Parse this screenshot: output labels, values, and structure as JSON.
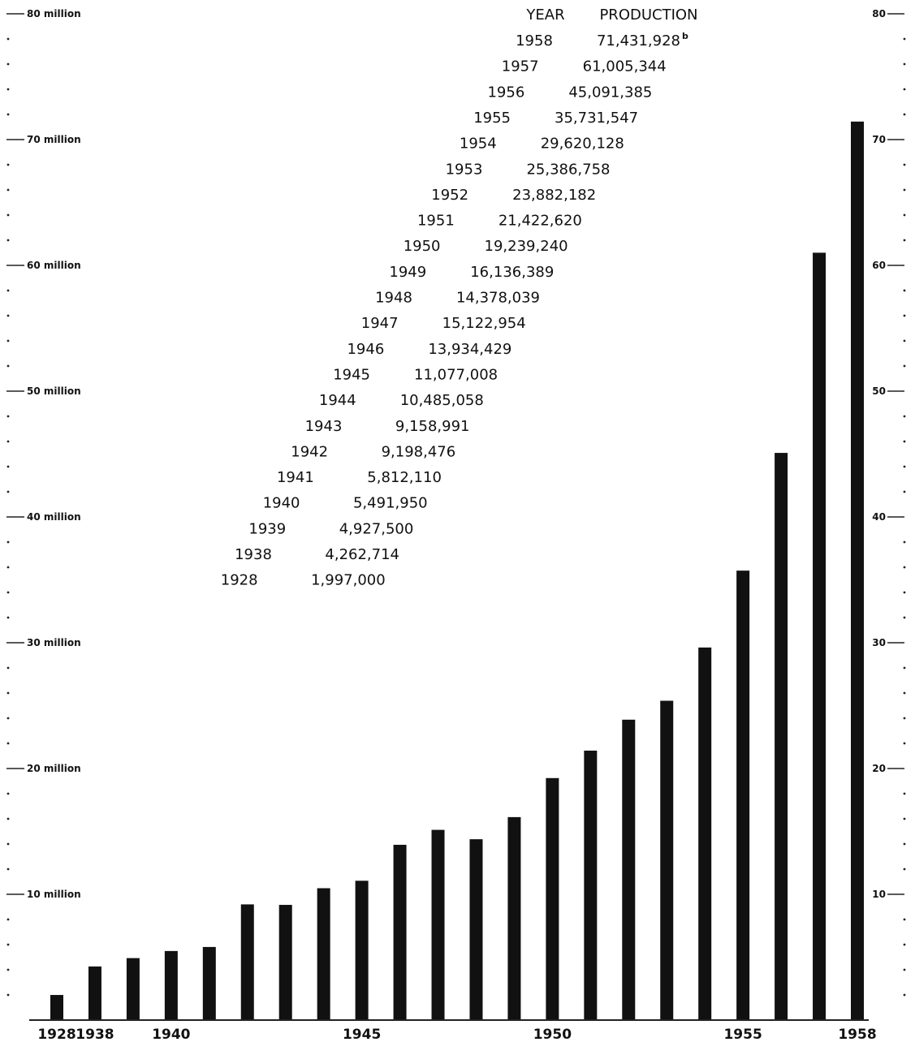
{
  "chart_data": {
    "type": "bar",
    "title": "",
    "xlabel": "",
    "ylabel": "",
    "ylim": [
      0,
      80
    ],
    "categories": [
      "1928",
      "1938",
      "1939",
      "1940",
      "1941",
      "1942",
      "1943",
      "1944",
      "1945",
      "1946",
      "1947",
      "1948",
      "1949",
      "1950",
      "1951",
      "1952",
      "1953",
      "1954",
      "1955",
      "1956",
      "1957",
      "1958"
    ],
    "values": [
      1.997,
      4.262714,
      4.9275,
      5.49195,
      5.81211,
      9.198476,
      9.158991,
      10.485058,
      11.077008,
      13.934429,
      15.122954,
      14.378039,
      16.136389,
      19.23924,
      21.42262,
      23.882182,
      25.386758,
      29.620128,
      35.731547,
      45.091385,
      61.005344,
      71.431928
    ],
    "x_tick_labels": [
      {
        "index": 0,
        "label": "1928"
      },
      {
        "index": 1,
        "label": "1938"
      },
      {
        "index": 3,
        "label": "1940"
      },
      {
        "index": 8,
        "label": "1945"
      },
      {
        "index": 13,
        "label": "1950"
      },
      {
        "index": 18,
        "label": "1955"
      },
      {
        "index": 21,
        "label": "1958"
      }
    ],
    "left_axis_labels": [
      {
        "value": 10,
        "label": "10 million"
      },
      {
        "value": 20,
        "label": "20 million"
      },
      {
        "value": 30,
        "label": "30 million"
      },
      {
        "value": 40,
        "label": "40 million"
      },
      {
        "value": 50,
        "label": "50 million"
      },
      {
        "value": 60,
        "label": "60 million"
      },
      {
        "value": 70,
        "label": "70 million"
      },
      {
        "value": 80,
        "label": "80 million"
      }
    ],
    "right_axis_labels": [
      {
        "value": 10,
        "label": "10"
      },
      {
        "value": 20,
        "label": "20"
      },
      {
        "value": 30,
        "label": "30"
      },
      {
        "value": 40,
        "label": "40"
      },
      {
        "value": 50,
        "label": "50"
      },
      {
        "value": 60,
        "label": "60"
      },
      {
        "value": 70,
        "label": "70"
      },
      {
        "value": 80,
        "label": "80"
      }
    ],
    "table": {
      "headers": [
        "YEAR",
        "PRODUCTION"
      ],
      "rows": [
        {
          "year": "1958",
          "production": "71,431,928",
          "note": "b"
        },
        {
          "year": "1957",
          "production": "61,005,344"
        },
        {
          "year": "1956",
          "production": "45,091,385"
        },
        {
          "year": "1955",
          "production": "35,731,547"
        },
        {
          "year": "1954",
          "production": "29,620,128"
        },
        {
          "year": "1953",
          "production": "25,386,758"
        },
        {
          "year": "1952",
          "production": "23,882,182"
        },
        {
          "year": "1951",
          "production": "21,422,620"
        },
        {
          "year": "1950",
          "production": "19,239,240"
        },
        {
          "year": "1949",
          "production": "16,136,389"
        },
        {
          "year": "1948",
          "production": "14,378,039"
        },
        {
          "year": "1947",
          "production": "15,122,954"
        },
        {
          "year": "1946",
          "production": "13,934,429"
        },
        {
          "year": "1945",
          "production": "11,077,008"
        },
        {
          "year": "1944",
          "production": "10,485,058"
        },
        {
          "year": "1943",
          "production": "9,158,991"
        },
        {
          "year": "1942",
          "production": "9,198,476"
        },
        {
          "year": "1941",
          "production": "5,812,110"
        },
        {
          "year": "1940",
          "production": "5,491,950"
        },
        {
          "year": "1939",
          "production": "4,927,500"
        },
        {
          "year": "1938",
          "production": "4,262,714"
        },
        {
          "year": "1928",
          "production": "1,997,000"
        }
      ]
    },
    "colors": {
      "bar": "#111111",
      "axis": "#222222"
    },
    "grid": false,
    "legend": "none"
  }
}
